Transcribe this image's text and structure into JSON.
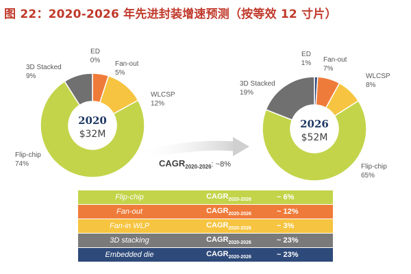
{
  "title": "图 22：2020-2026 年先进封装增速预测（按等效 12 寸片）",
  "chart_data": [
    {
      "type": "pie",
      "center_year": "2020",
      "center_value": "$32M",
      "slices": [
        {
          "name": "ED",
          "label": "0%",
          "value": 0,
          "color": "#2e4a7a"
        },
        {
          "name": "Fan-out",
          "label": "5%",
          "value": 5,
          "color": "#ef7b3a"
        },
        {
          "name": "WLCSP",
          "label": "12%",
          "value": 12,
          "color": "#f6c440"
        },
        {
          "name": "Flip-chip",
          "label": "74%",
          "value": 74,
          "color": "#c3d44b"
        },
        {
          "name": "3D Stacked",
          "label": "9%",
          "value": 9,
          "color": "#707070"
        }
      ]
    },
    {
      "type": "pie",
      "center_year": "2026",
      "center_value": "$52M",
      "slices": [
        {
          "name": "ED",
          "label": "1%",
          "value": 1,
          "color": "#2e4a7a"
        },
        {
          "name": "Fan-out",
          "label": "7%",
          "value": 7,
          "color": "#ef7b3a"
        },
        {
          "name": "WLCSP",
          "label": "8%",
          "value": 8,
          "color": "#f6c440"
        },
        {
          "name": "Flip-chip",
          "label": "65%",
          "value": 65,
          "color": "#c3d44b"
        },
        {
          "name": "3D Stacked",
          "label": "19%",
          "value": 19,
          "color": "#707070"
        }
      ]
    }
  ],
  "cagr_arrow": {
    "label": "CAGR",
    "sub": "2020-2026",
    "value": ": ~8%"
  },
  "table": [
    {
      "name": "Flip-chip",
      "cagr": "CAGR",
      "sub": "2020-2026",
      "value": "~ 6%",
      "bg": "#c3d44b",
      "fg": "#ffffff"
    },
    {
      "name": "Fan-out",
      "cagr": "CAGR",
      "sub": "2020-2026",
      "value": "~ 12%",
      "bg": "#ef7b3a",
      "fg": "#ffffff"
    },
    {
      "name": "Fan-in WLP",
      "cagr": "CAGR",
      "sub": "2020-2026",
      "value": "~ 3%",
      "bg": "#f6c440",
      "fg": "#ffffff"
    },
    {
      "name": "3D stacking",
      "cagr": "CAGR",
      "sub": "2020-2026",
      "value": "~ 23%",
      "bg": "#7a7a7a",
      "fg": "#ffffff"
    },
    {
      "name": "Embedded die",
      "cagr": "CAGR",
      "sub": "2020-2026",
      "value": "~ 23%",
      "bg": "#2e4a7a",
      "fg": "#ffffff"
    }
  ]
}
